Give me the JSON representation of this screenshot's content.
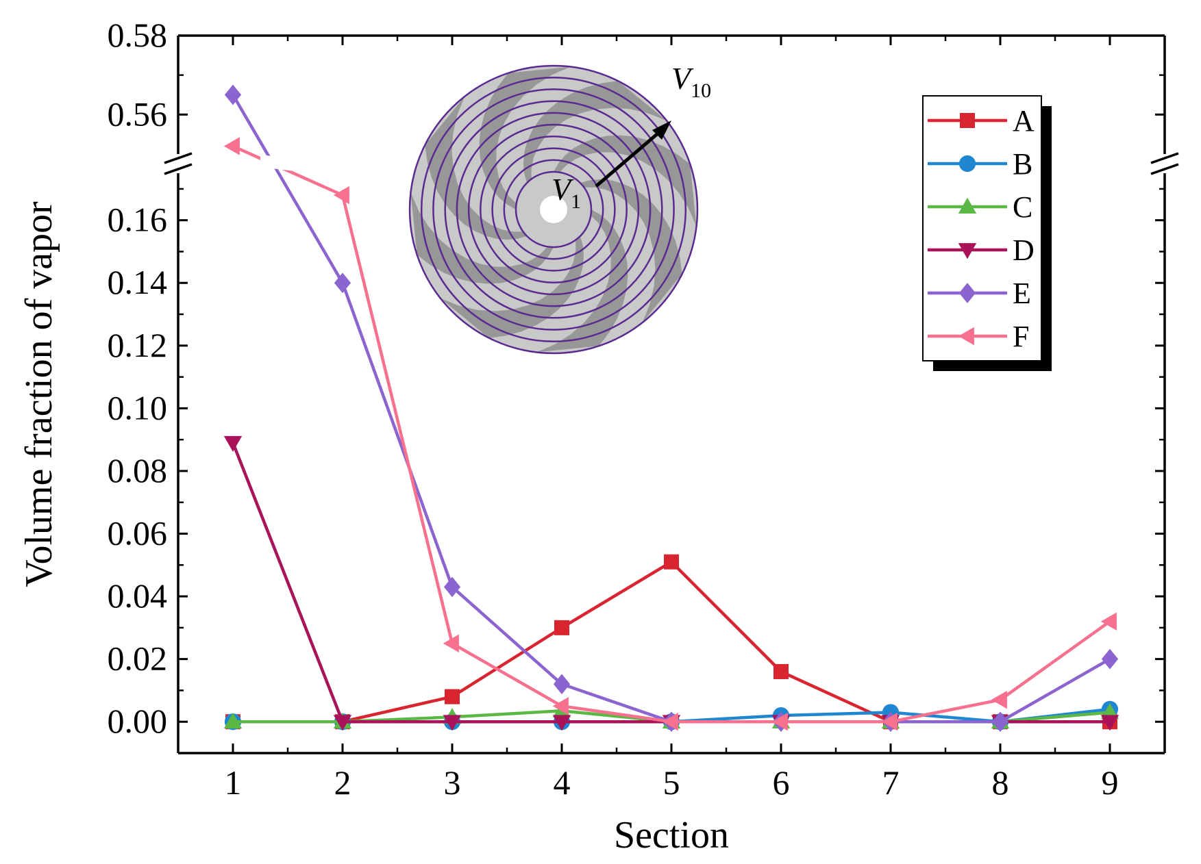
{
  "chart_data": {
    "type": "line",
    "title": "",
    "xlabel": "Section",
    "ylabel": "Volume fraction of vapor",
    "x": [
      1,
      2,
      3,
      4,
      5,
      6,
      7,
      8,
      9
    ],
    "xlim": [
      0.5,
      9.5
    ],
    "ylim_lower": [
      -0.01,
      0.175
    ],
    "ylim_upper": [
      0.55,
      0.58
    ],
    "axis_break": true,
    "yticks_lower": [
      "0.00",
      "0.02",
      "0.04",
      "0.06",
      "0.08",
      "0.10",
      "0.12",
      "0.14",
      "0.16"
    ],
    "yticks_upper": [
      "0.56",
      "0.58"
    ],
    "xticks": [
      "1",
      "2",
      "3",
      "4",
      "5",
      "6",
      "7",
      "8",
      "9"
    ],
    "legend_position": "top-right",
    "series": [
      {
        "name": "A",
        "marker": "square",
        "color": "#d9252f",
        "values": [
          0,
          0,
          0.008,
          0.03,
          0.051,
          0.016,
          0,
          0,
          0
        ]
      },
      {
        "name": "B",
        "marker": "circle",
        "color": "#1f86d2",
        "values": [
          0,
          0,
          0,
          0,
          0,
          0.002,
          0.003,
          0,
          0.004
        ]
      },
      {
        "name": "C",
        "marker": "triangle-up",
        "color": "#5cb844",
        "values": [
          0,
          0,
          0.0015,
          0.0035,
          0,
          0,
          0,
          0,
          0.003
        ]
      },
      {
        "name": "D",
        "marker": "triangle-down",
        "color": "#a8135a",
        "values": [
          0.089,
          0,
          0,
          0,
          0,
          0,
          0,
          0,
          0
        ]
      },
      {
        "name": "E",
        "marker": "diamond",
        "color": "#8b64cf",
        "values": [
          0.565,
          0.14,
          0.043,
          0.012,
          0,
          0,
          0,
          0,
          0.02
        ]
      },
      {
        "name": "F",
        "marker": "triangle-left",
        "color": "#f7708e",
        "values": [
          0.552,
          0.168,
          0.025,
          0.005,
          0,
          0,
          0,
          0.007,
          0.032
        ]
      }
    ],
    "inset": {
      "label_inner": "V",
      "label_inner_sub": "1",
      "label_outer": "V",
      "label_outer_sub": "10",
      "ring_count": 10,
      "ring_color": "#5b2a91",
      "blade_count": 8
    }
  }
}
